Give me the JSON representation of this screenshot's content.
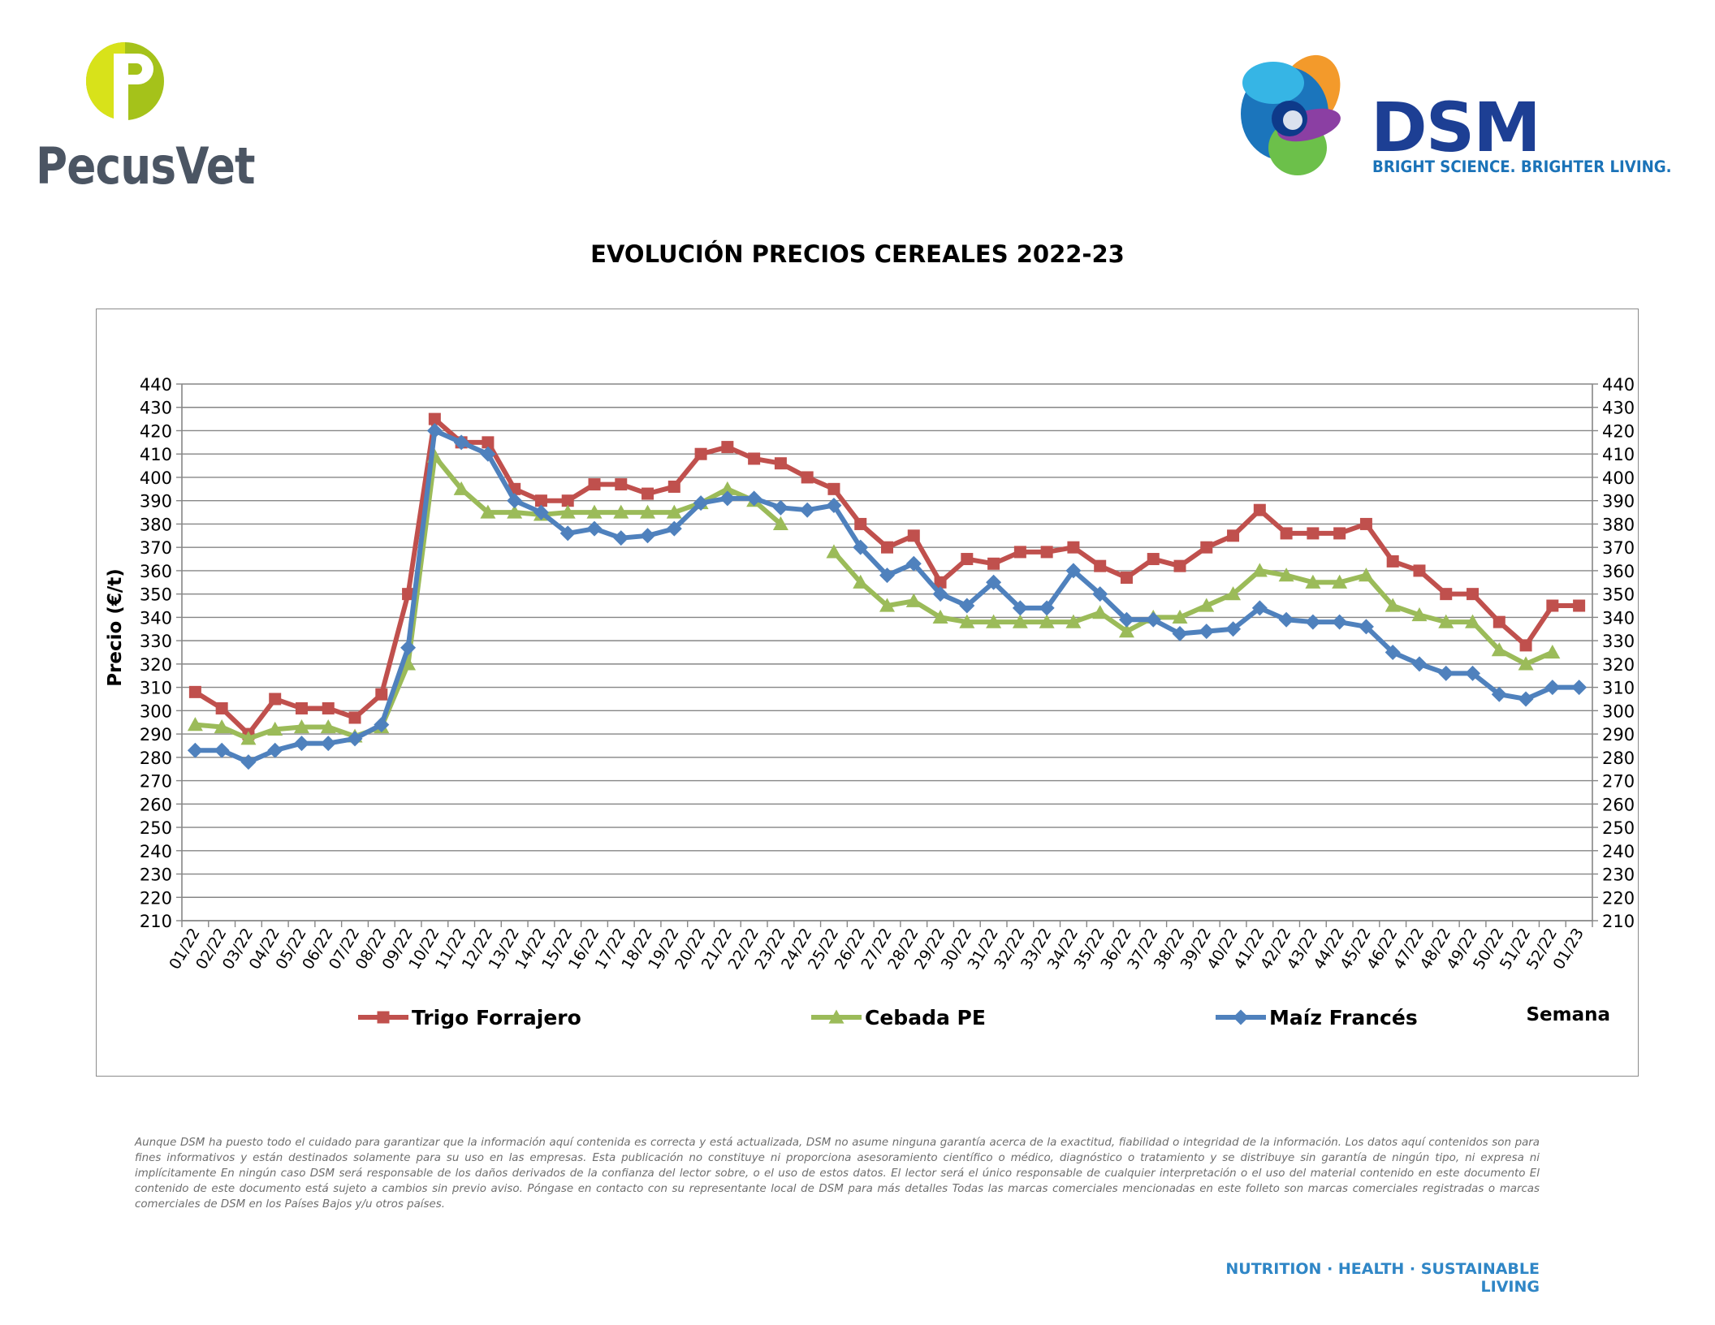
{
  "logos": {
    "left_brand": "PecusVet",
    "right_brand": "DSM",
    "right_tagline": "BRIGHT SCIENCE. BRIGHTER LIVING."
  },
  "colors": {
    "trigo": "#c0504d",
    "cebada": "#9bbb59",
    "maiz": "#4f81bd",
    "gridline": "#868686",
    "pecus_green": "#a5c21a",
    "dsm_blue": "#1d3f94",
    "footer_blue": "#2f86c6"
  },
  "chart_data": {
    "type": "line",
    "title": "EVOLUCIÓN PRECIOS CEREALES 2022-23",
    "ylabel": "Precio (€/t)",
    "xlabel": "Semana",
    "ylim": [
      210,
      440
    ],
    "ytick_step": 10,
    "grid": true,
    "legend_position": "bottom",
    "secondary_y_axis": true,
    "categories": [
      "01/22",
      "02/22",
      "03/22",
      "04/22",
      "05/22",
      "06/22",
      "07/22",
      "08/22",
      "09/22",
      "10/22",
      "11/22",
      "12/22",
      "13/22",
      "14/22",
      "15/22",
      "16/22",
      "17/22",
      "18/22",
      "19/22",
      "20/22",
      "21/22",
      "22/22",
      "23/22",
      "24/22",
      "25/22",
      "26/22",
      "27/22",
      "28/22",
      "29/22",
      "30/22",
      "31/22",
      "32/22",
      "33/22",
      "34/22",
      "35/22",
      "36/22",
      "37/22",
      "38/22",
      "39/22",
      "40/22",
      "41/22",
      "42/22",
      "43/22",
      "44/22",
      "45/22",
      "46/22",
      "47/22",
      "48/22",
      "49/22",
      "50/22",
      "51/22",
      "52/22",
      "01/23"
    ],
    "series": [
      {
        "name": "Trigo Forrajero",
        "marker": "square",
        "values": [
          308,
          301,
          290,
          305,
          301,
          301,
          297,
          307,
          350,
          425,
          415,
          415,
          395,
          390,
          390,
          397,
          397,
          393,
          396,
          410,
          413,
          408,
          406,
          400,
          395,
          380,
          370,
          375,
          355,
          365,
          363,
          368,
          368,
          370,
          362,
          357,
          365,
          362,
          370,
          375,
          386,
          376,
          376,
          376,
          380,
          364,
          360,
          350,
          350,
          338,
          328,
          345,
          345
        ]
      },
      {
        "name": "Cebada PE",
        "marker": "triangle",
        "values": [
          294,
          293,
          288,
          292,
          293,
          293,
          289,
          293,
          320,
          409,
          395,
          385,
          385,
          384,
          385,
          385,
          385,
          385,
          385,
          389,
          395,
          390,
          380,
          null,
          368,
          355,
          345,
          347,
          340,
          338,
          338,
          338,
          338,
          338,
          342,
          334,
          340,
          340,
          345,
          350,
          360,
          358,
          355,
          355,
          358,
          345,
          341,
          338,
          338,
          326,
          320,
          325,
          null
        ]
      },
      {
        "name": "Maíz Francés",
        "marker": "diamond",
        "values": [
          283,
          283,
          278,
          283,
          286,
          286,
          288,
          294,
          327,
          420,
          415,
          410,
          390,
          385,
          376,
          378,
          374,
          375,
          378,
          389,
          391,
          391,
          387,
          386,
          388,
          370,
          358,
          363,
          350,
          345,
          355,
          344,
          344,
          360,
          350,
          339,
          339,
          333,
          334,
          335,
          344,
          339,
          338,
          338,
          336,
          325,
          320,
          316,
          316,
          307,
          305,
          310,
          310
        ]
      }
    ]
  },
  "disclaimer": "Aunque DSM ha puesto todo el cuidado para garantizar que la información aquí contenida es correcta y está actualizada, DSM no asume ninguna garantía acerca de la exactitud, fiabilidad o integridad de la información. Los datos aquí contenidos son para fines informativos y están destinados solamente para su uso en las empresas. Esta publicación no constituye ni proporciona asesoramiento científico o médico, diagnóstico o tratamiento y se distribuye sin garantía de ningún tipo, ni expresa ni implícitamente En ningún caso DSM será responsable de los daños derivados de la confianza del lector sobre, o el uso de estos datos. El lector será el único responsable de cualquier interpretación o el uso del material contenido en este documento El contenido de este documento está sujeto a cambios sin previo aviso. Póngase en contacto con su representante local de DSM para más detalles Todas las marcas comerciales mencionadas en este folleto son marcas comerciales registradas o marcas comerciales de DSM en los Países Bajos y/u otros países.",
  "footer": "NUTRITION · HEALTH · SUSTAINABLE LIVING"
}
